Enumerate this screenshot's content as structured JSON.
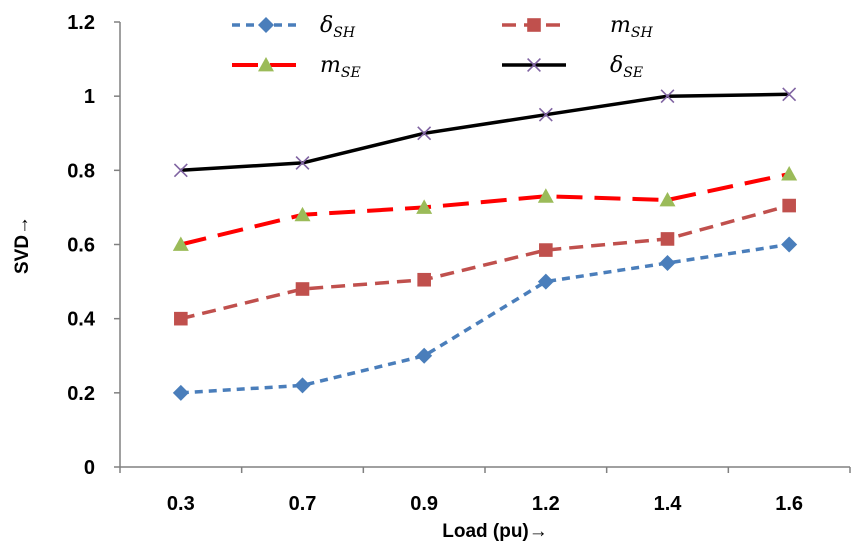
{
  "chart_data": {
    "type": "line",
    "categories": [
      "0.3",
      "0.7",
      "0.9",
      "1.2",
      "1.4",
      "1.6"
    ],
    "y_ticks": [
      "0",
      "0.2",
      "0.4",
      "0.6",
      "0.8",
      "1",
      "1.2"
    ],
    "ylim": [
      0,
      1.2
    ],
    "xlabel": "Load (pu)→",
    "ylabel": "SVD→",
    "grid": false,
    "legend_placement": "top",
    "series": [
      {
        "name": "δ",
        "sub": "SH",
        "values": [
          0.2,
          0.22,
          0.3,
          0.5,
          0.55,
          0.6
        ],
        "color": "#4a7ebb",
        "marker": "diamond",
        "dash": "short"
      },
      {
        "name": "m",
        "sub": "SH",
        "values": [
          0.4,
          0.48,
          0.505,
          0.585,
          0.615,
          0.705
        ],
        "color": "#c0504d",
        "marker": "square",
        "dash": "medium"
      },
      {
        "name": "m",
        "sub": "SE",
        "values": [
          0.6,
          0.68,
          0.7,
          0.73,
          0.72,
          0.79
        ],
        "color": "#ff0000",
        "marker": "triangle",
        "dash": "long",
        "marker_color": "#9bbb59"
      },
      {
        "name": "δ",
        "sub": "SE",
        "values": [
          0.8,
          0.82,
          0.9,
          0.95,
          1.0,
          1.005
        ],
        "color": "#000000",
        "marker": "x",
        "dash": "solid",
        "marker_color": "#8064a2"
      }
    ]
  }
}
